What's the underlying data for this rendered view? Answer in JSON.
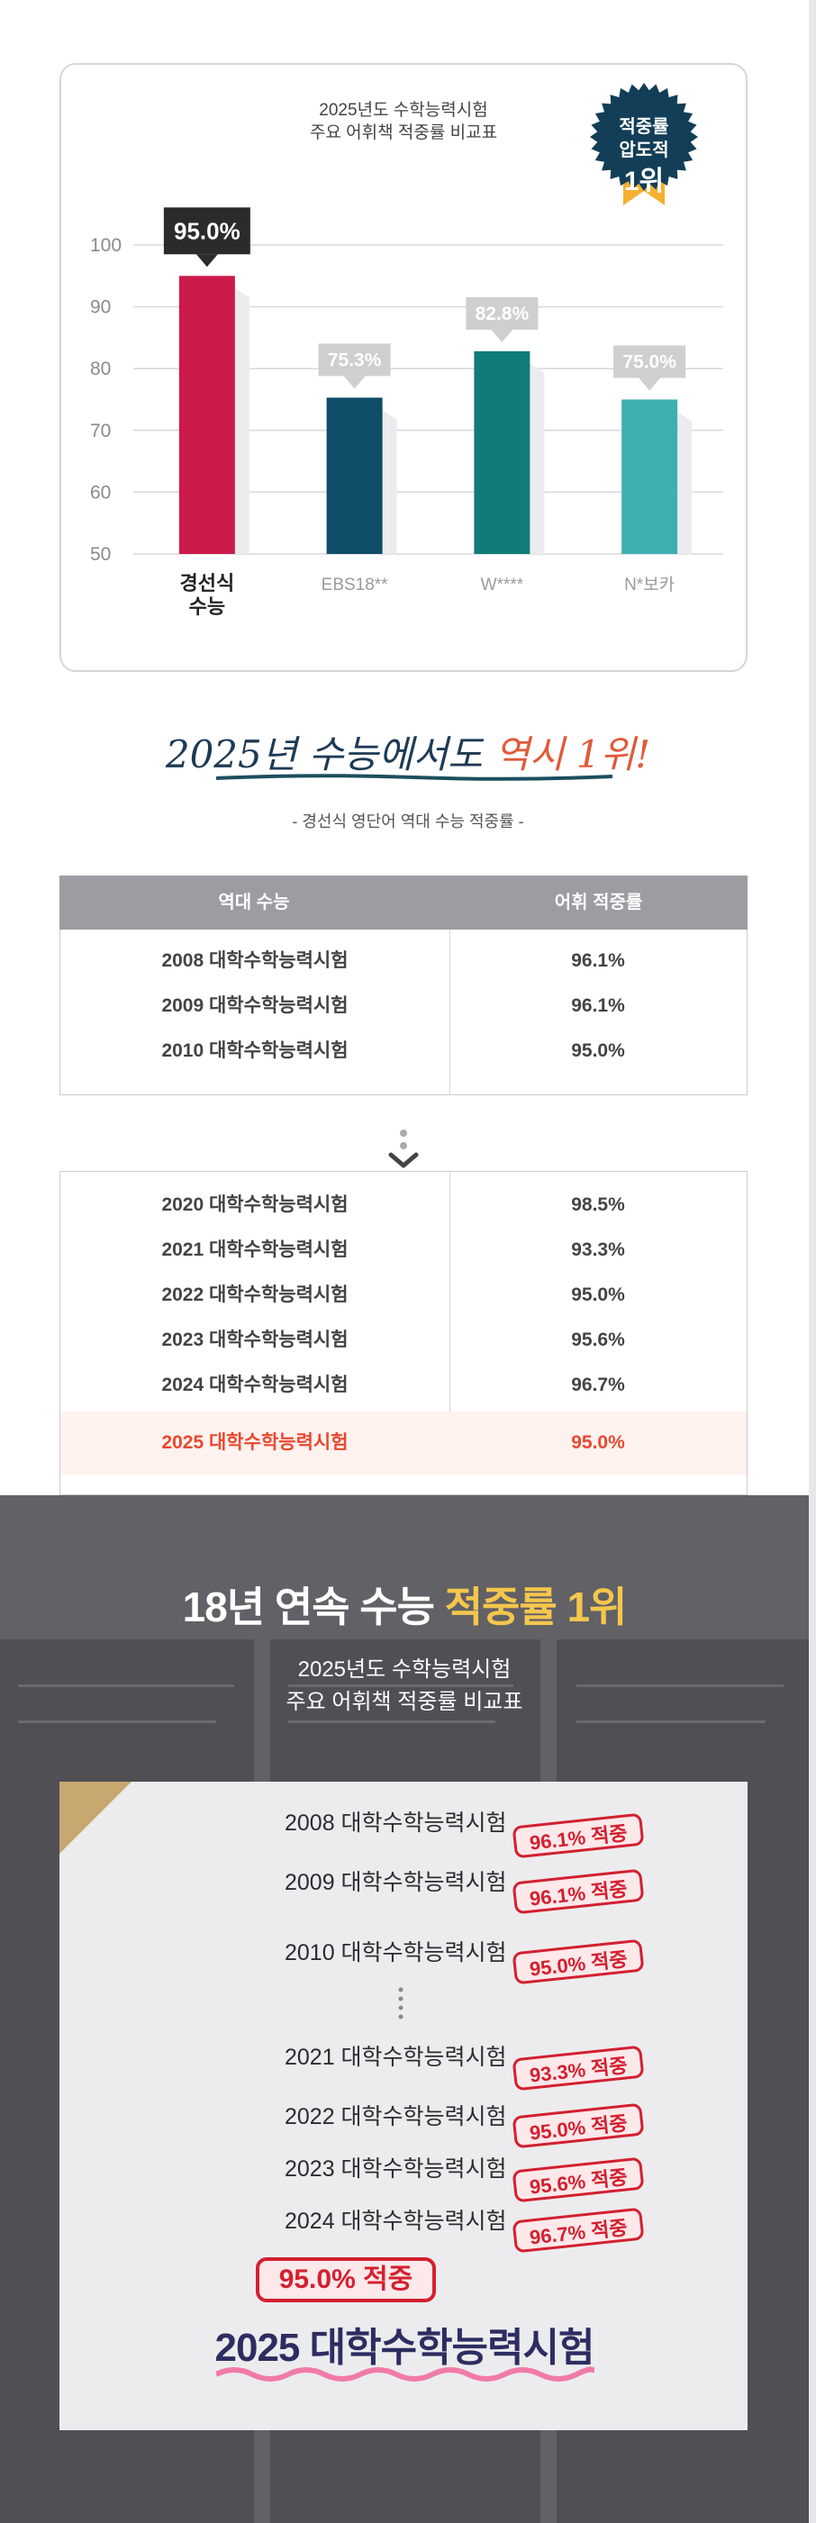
{
  "chart_section": {
    "title_line1": "2025년도 수학능력시험",
    "title_line2": "주요 어휘책 적중률 비교표",
    "badge": {
      "line1": "적중률",
      "line2": "압도적",
      "line3": "1위"
    },
    "colors": {
      "highlight": "#cc1a4a",
      "dark_blue": "#0f4d69",
      "teal": "#0f7c7a",
      "light_teal": "#3db0b2"
    },
    "chart_data": {
      "type": "bar",
      "categories": [
        "경선식\n수능",
        "EBS18**",
        "W****",
        "N*보카"
      ],
      "values": [
        95.0,
        75.3,
        82.8,
        75.0
      ],
      "value_labels": [
        "95.0%",
        "75.3%",
        "82.8%",
        "75.0%"
      ],
      "yticks": [
        50,
        60,
        70,
        80,
        90,
        100
      ],
      "ylim": [
        50,
        100
      ],
      "grid": true
    }
  },
  "heading": {
    "main_prefix": "2025년 수능에서도 ",
    "main_accent": "역시 1위!",
    "sub": "- 경선식 영단어 역대 수능 적중률 -"
  },
  "table": {
    "col_year": "역대 수능",
    "col_rate": "어휘 적중률",
    "group1": [
      {
        "year": "2008 대학수학능력시험",
        "rate": "96.1%"
      },
      {
        "year": "2009 대학수학능력시험",
        "rate": "96.1%"
      },
      {
        "year": "2010 대학수학능력시험",
        "rate": "95.0%"
      }
    ],
    "group2": [
      {
        "year": "2020 대학수학능력시험",
        "rate": "98.5%"
      },
      {
        "year": "2021 대학수학능력시험",
        "rate": "93.3%"
      },
      {
        "year": "2022 대학수학능력시험",
        "rate": "95.0%"
      },
      {
        "year": "2023 대학수학능력시험",
        "rate": "95.6%"
      },
      {
        "year": "2024 대학수학능력시험",
        "rate": "96.7%"
      }
    ],
    "highlight": {
      "year": "2025 대학수학능력시험",
      "rate": "95.0%"
    }
  },
  "dark_section": {
    "title_white": "18년 연속 수능 ",
    "title_gold": "적중률 1위",
    "sub_line1": "2025년도 수학능력시험",
    "sub_line2": "주요 어휘책 적중률 비교표",
    "items": [
      {
        "exam": "2008 대학수학능력시험",
        "stamp": "96.1% 적중"
      },
      {
        "exam": "2009 대학수학능력시험",
        "stamp": "96.1% 적중"
      },
      {
        "exam": "2010 대학수학능력시험",
        "stamp": "95.0% 적중"
      },
      {
        "exam": "2021 대학수학능력시험",
        "stamp": "93.3% 적중"
      },
      {
        "exam": "2022 대학수학능력시험",
        "stamp": "95.0% 적중"
      },
      {
        "exam": "2023 대학수학능력시험",
        "stamp": "95.6% 적중"
      },
      {
        "exam": "2024 대학수학능력시험",
        "stamp": "96.7% 적중"
      }
    ],
    "final_stamp": "95.0% 적중",
    "final_exam": "2025 대학수학능력시험"
  }
}
